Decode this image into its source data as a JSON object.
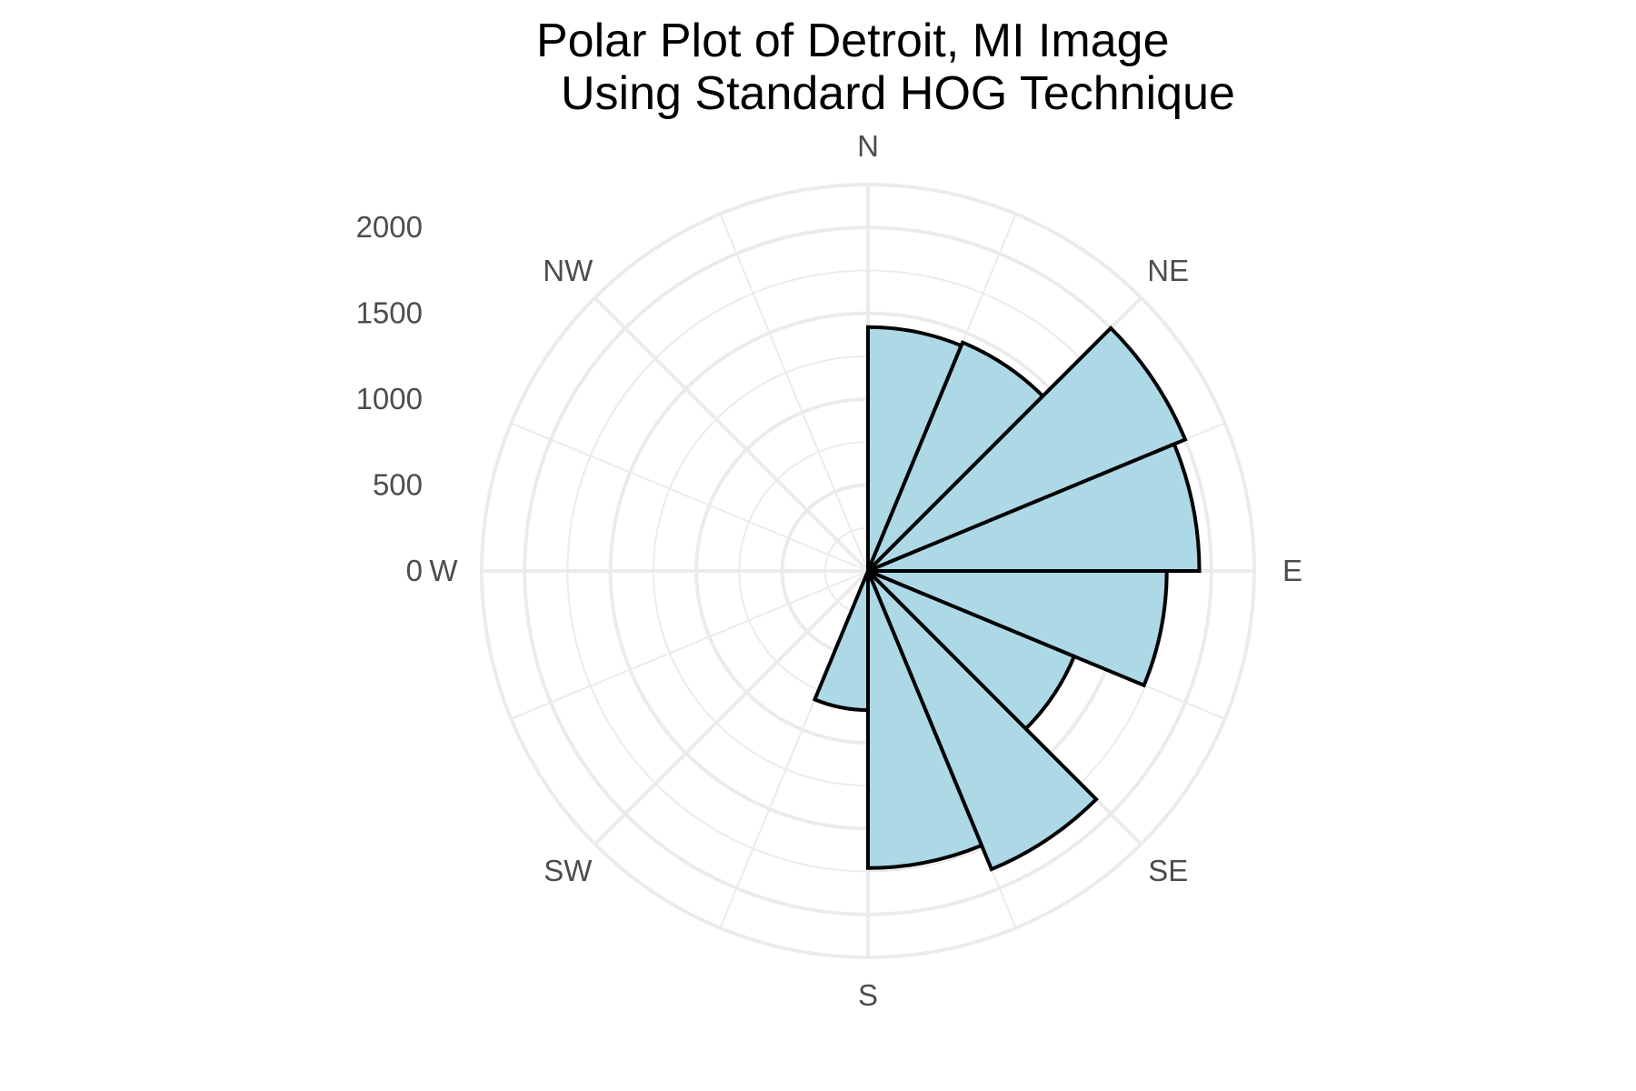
{
  "chart_data": {
    "type": "bar",
    "coordinate_system": "polar",
    "title_lines": [
      "Polar Plot of Detroit, MI Image",
      "Using Standard HOG Technique"
    ],
    "xlabel": "",
    "ylabel": "",
    "direction_labels": [
      "N",
      "NE",
      "E",
      "SE",
      "S",
      "SW",
      "W",
      "NW"
    ],
    "radial_ticks": [
      0,
      500,
      1000,
      1500,
      2000
    ],
    "ylim": [
      0,
      2250
    ],
    "bin_width_degrees": 22.5,
    "bins": [
      {
        "start_deg": 0,
        "value": 1420
      },
      {
        "start_deg": 22.5,
        "value": 1440
      },
      {
        "start_deg": 45,
        "value": 2000
      },
      {
        "start_deg": 67.5,
        "value": 1930
      },
      {
        "start_deg": 90,
        "value": 1740
      },
      {
        "start_deg": 112.5,
        "value": 1300
      },
      {
        "start_deg": 135,
        "value": 1880
      },
      {
        "start_deg": 157.5,
        "value": 1730
      },
      {
        "start_deg": 180,
        "value": 810
      }
    ],
    "fill_color": "#add8e6",
    "outline_color": "#000000",
    "grid_color": "#ebebeb",
    "grid": true,
    "legend": "none"
  }
}
